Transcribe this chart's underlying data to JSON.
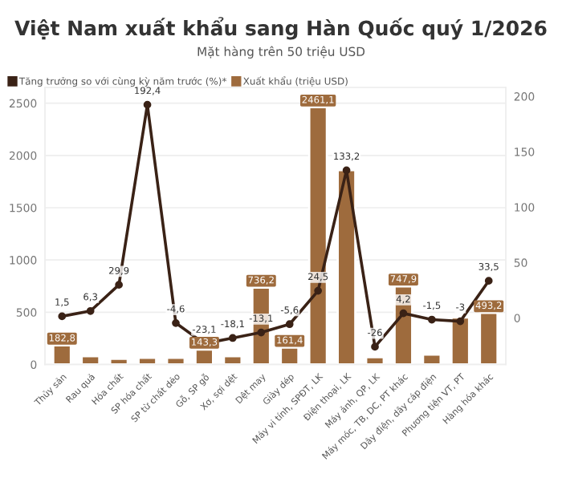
{
  "chart_data": {
    "type": "bar",
    "title": "Việt Nam xuất khẩu sang Hàn Quốc quý 1/2026",
    "subtitle": "Mặt hàng trên 50 triệu USD",
    "categories": [
      "Thủy sản",
      "Rau quả",
      "Hóa chất",
      "SP hóa chất",
      "SP từ chất dẻo",
      "Gỗ, SP gỗ",
      "Xơ, sợi dệt",
      "Dệt may",
      "Giày dép",
      "Máy vi tính, SPĐT, LK",
      "Điện thoại, LK",
      "Máy ảnh, QP, LK",
      "Máy móc, TB, DC, PT khác",
      "Dây điện, dây cáp điện",
      "Phương tiện VT, PT",
      "Hàng hóa khác"
    ],
    "series": [
      {
        "name": "Tăng trưởng so với cùng kỳ năm trước (%)*",
        "type": "line",
        "axis": "y2",
        "color": "#3a2216",
        "marker": "circle",
        "values": [
          1.5,
          6.3,
          29.9,
          192.4,
          -4.6,
          -23.1,
          -18.1,
          -13.1,
          -5.6,
          24.5,
          133.2,
          -26,
          4.2,
          -1.5,
          -3,
          33.5
        ],
        "value_labels": [
          "1,5",
          "6,3",
          "29,9",
          "192,4",
          "-4,6",
          "-23,1",
          "-18,1",
          "-13,1",
          "-5,6",
          "24,5",
          "133,2",
          "-26",
          "4,2",
          "-1,5",
          "-3",
          "33,5"
        ]
      },
      {
        "name": "Xuất khẩu (triệu USD)",
        "color": "#9e6b3d",
        "values": [
          182.8,
          80,
          55,
          65,
          65,
          143.3,
          80,
          736.2,
          161.4,
          2461.1,
          1860,
          70,
          747.9,
          95,
          450,
          493.2
        ],
        "value_labels": [
          "182,8",
          null,
          null,
          null,
          null,
          "143,3",
          null,
          "736,2",
          "161,4",
          "2461,1",
          null,
          null,
          "747,9",
          null,
          null,
          "493,2"
        ]
      }
    ],
    "ylim": [
      0,
      2650
    ],
    "yticks": [
      0,
      500,
      1000,
      1500,
      2000,
      2500
    ],
    "y2lim": [
      -42,
      208
    ],
    "y2ticks": [
      0,
      50,
      100,
      150,
      200
    ],
    "grid": "y",
    "legend": "top left"
  }
}
